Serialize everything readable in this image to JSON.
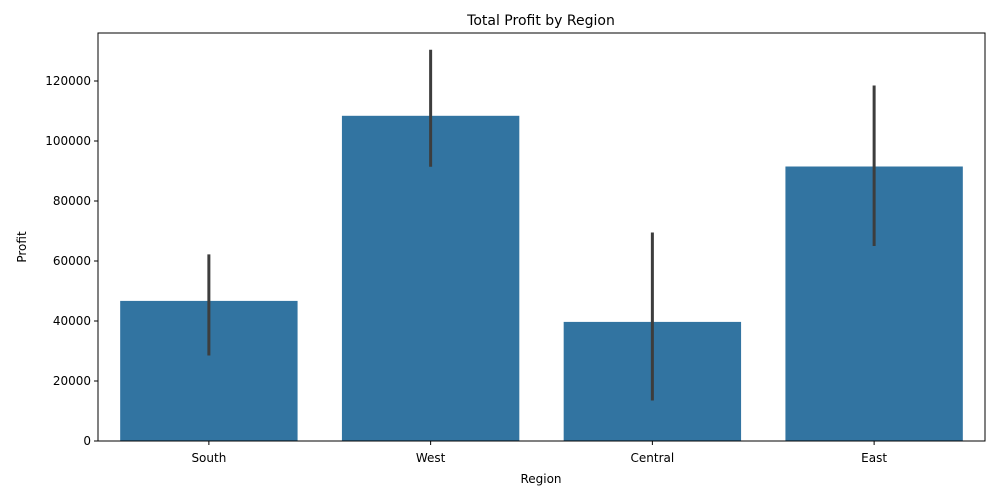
{
  "chart_data": {
    "type": "bar",
    "title": "Total Profit by Region",
    "xlabel": "Region",
    "ylabel": "Profit",
    "categories": [
      "South",
      "West",
      "Central",
      "East"
    ],
    "values": [
      46700,
      108400,
      39700,
      91500
    ],
    "error_low": [
      28500,
      91400,
      13500,
      65000
    ],
    "error_high": [
      62200,
      130400,
      69500,
      118500
    ],
    "ylim": [
      0,
      136000
    ],
    "yticks": [
      0,
      20000,
      40000,
      60000,
      80000,
      100000,
      120000
    ],
    "bar_color": "#3274a1",
    "errorbar_color": "#3d3d3d",
    "grid": false,
    "legend": "none"
  }
}
